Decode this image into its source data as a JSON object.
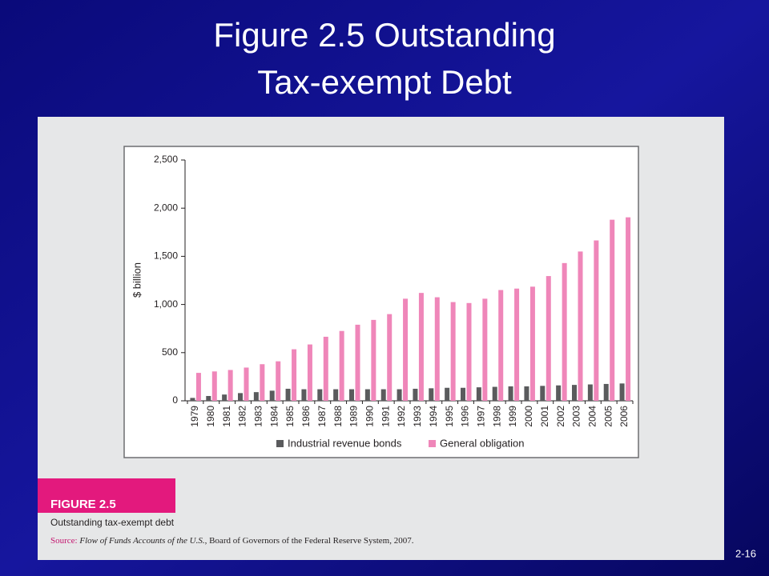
{
  "slide": {
    "title": [
      "Figure 2.5 Outstanding",
      "Tax-exempt Debt"
    ],
    "number": "2-16"
  },
  "chart_data": {
    "type": "bar",
    "y_label": "$ billion",
    "categories": [
      "1979",
      "1980",
      "1981",
      "1982",
      "1983",
      "1984",
      "1985",
      "1986",
      "1987",
      "1988",
      "1989",
      "1990",
      "1991",
      "1992",
      "1993",
      "1994",
      "1995",
      "1996",
      "1997",
      "1998",
      "1999",
      "2000",
      "2001",
      "2002",
      "2003",
      "2004",
      "2005",
      "2006"
    ],
    "series": [
      {
        "name": "Industrial revenue bonds",
        "color": "#5a5b5d",
        "values": [
          30,
          50,
          65,
          80,
          90,
          105,
          125,
          120,
          120,
          120,
          120,
          120,
          120,
          120,
          125,
          130,
          135,
          135,
          140,
          145,
          150,
          150,
          155,
          160,
          165,
          170,
          175,
          180
        ]
      },
      {
        "name": "General obligation",
        "color": "#ef86b9",
        "values": [
          290,
          305,
          320,
          345,
          380,
          410,
          535,
          585,
          665,
          725,
          790,
          840,
          900,
          1060,
          1120,
          1075,
          1025,
          1015,
          1060,
          1150,
          1165,
          1185,
          1295,
          1430,
          1550,
          1665,
          1880,
          1905
        ]
      }
    ],
    "ylim": [
      0,
      2500
    ],
    "yticks": [
      0,
      500,
      {
        "value": 1000,
        "label": "1,000"
      },
      {
        "value": 1500,
        "label": "1,500"
      },
      {
        "value": 2000,
        "label": "2,000"
      },
      {
        "value": 2500,
        "label": "2,500"
      }
    ],
    "legend": "bottom"
  },
  "figure": {
    "label": "FIGURE 2.5",
    "caption": "Outstanding tax-exempt debt",
    "source": {
      "label": "Source:",
      "title": "Flow of Funds Accounts of the U.S.",
      "rest": ", Board of Governors of the Federal Reserve System, 2007."
    }
  }
}
